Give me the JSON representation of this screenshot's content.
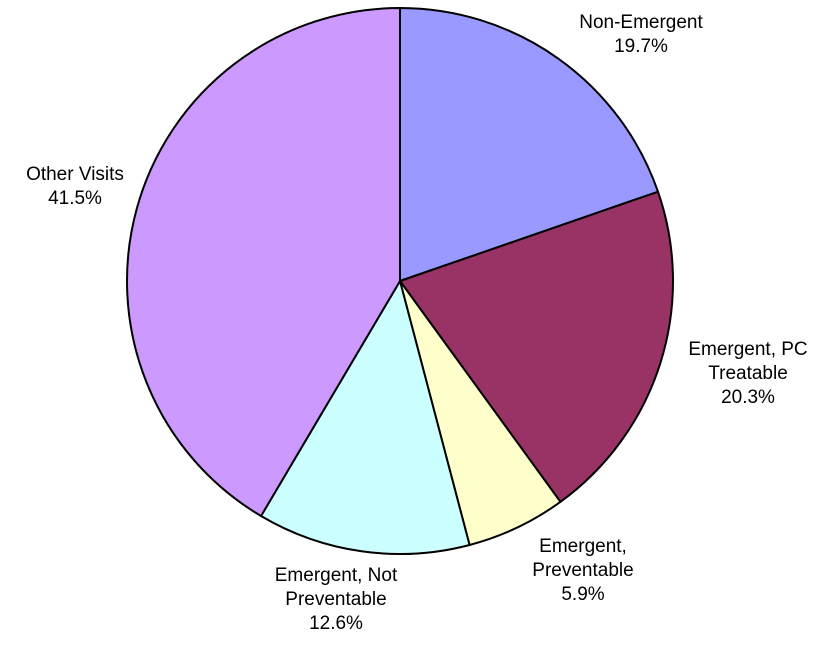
{
  "chart_data": {
    "type": "pie",
    "title": "",
    "start": "12 o'clock",
    "direction": "clockwise",
    "slices": [
      {
        "label_lines": [
          "Non-Emergent"
        ],
        "value": 19.7,
        "value_text": "19.7%",
        "color": "#9999ff"
      },
      {
        "label_lines": [
          "Emergent, PC",
          "Treatable"
        ],
        "value": 20.3,
        "value_text": "20.3%",
        "color": "#993366"
      },
      {
        "label_lines": [
          "Emergent,",
          "Preventable"
        ],
        "value": 5.9,
        "value_text": "5.9%",
        "color": "#ffffcc"
      },
      {
        "label_lines": [
          "Emergent, Not",
          "Preventable"
        ],
        "value": 12.6,
        "value_text": "12.6%",
        "color": "#ccffff"
      },
      {
        "label_lines": [
          "Other Visits"
        ],
        "value": 41.5,
        "value_text": "41.5%",
        "color": "#cc99ff"
      }
    ]
  }
}
